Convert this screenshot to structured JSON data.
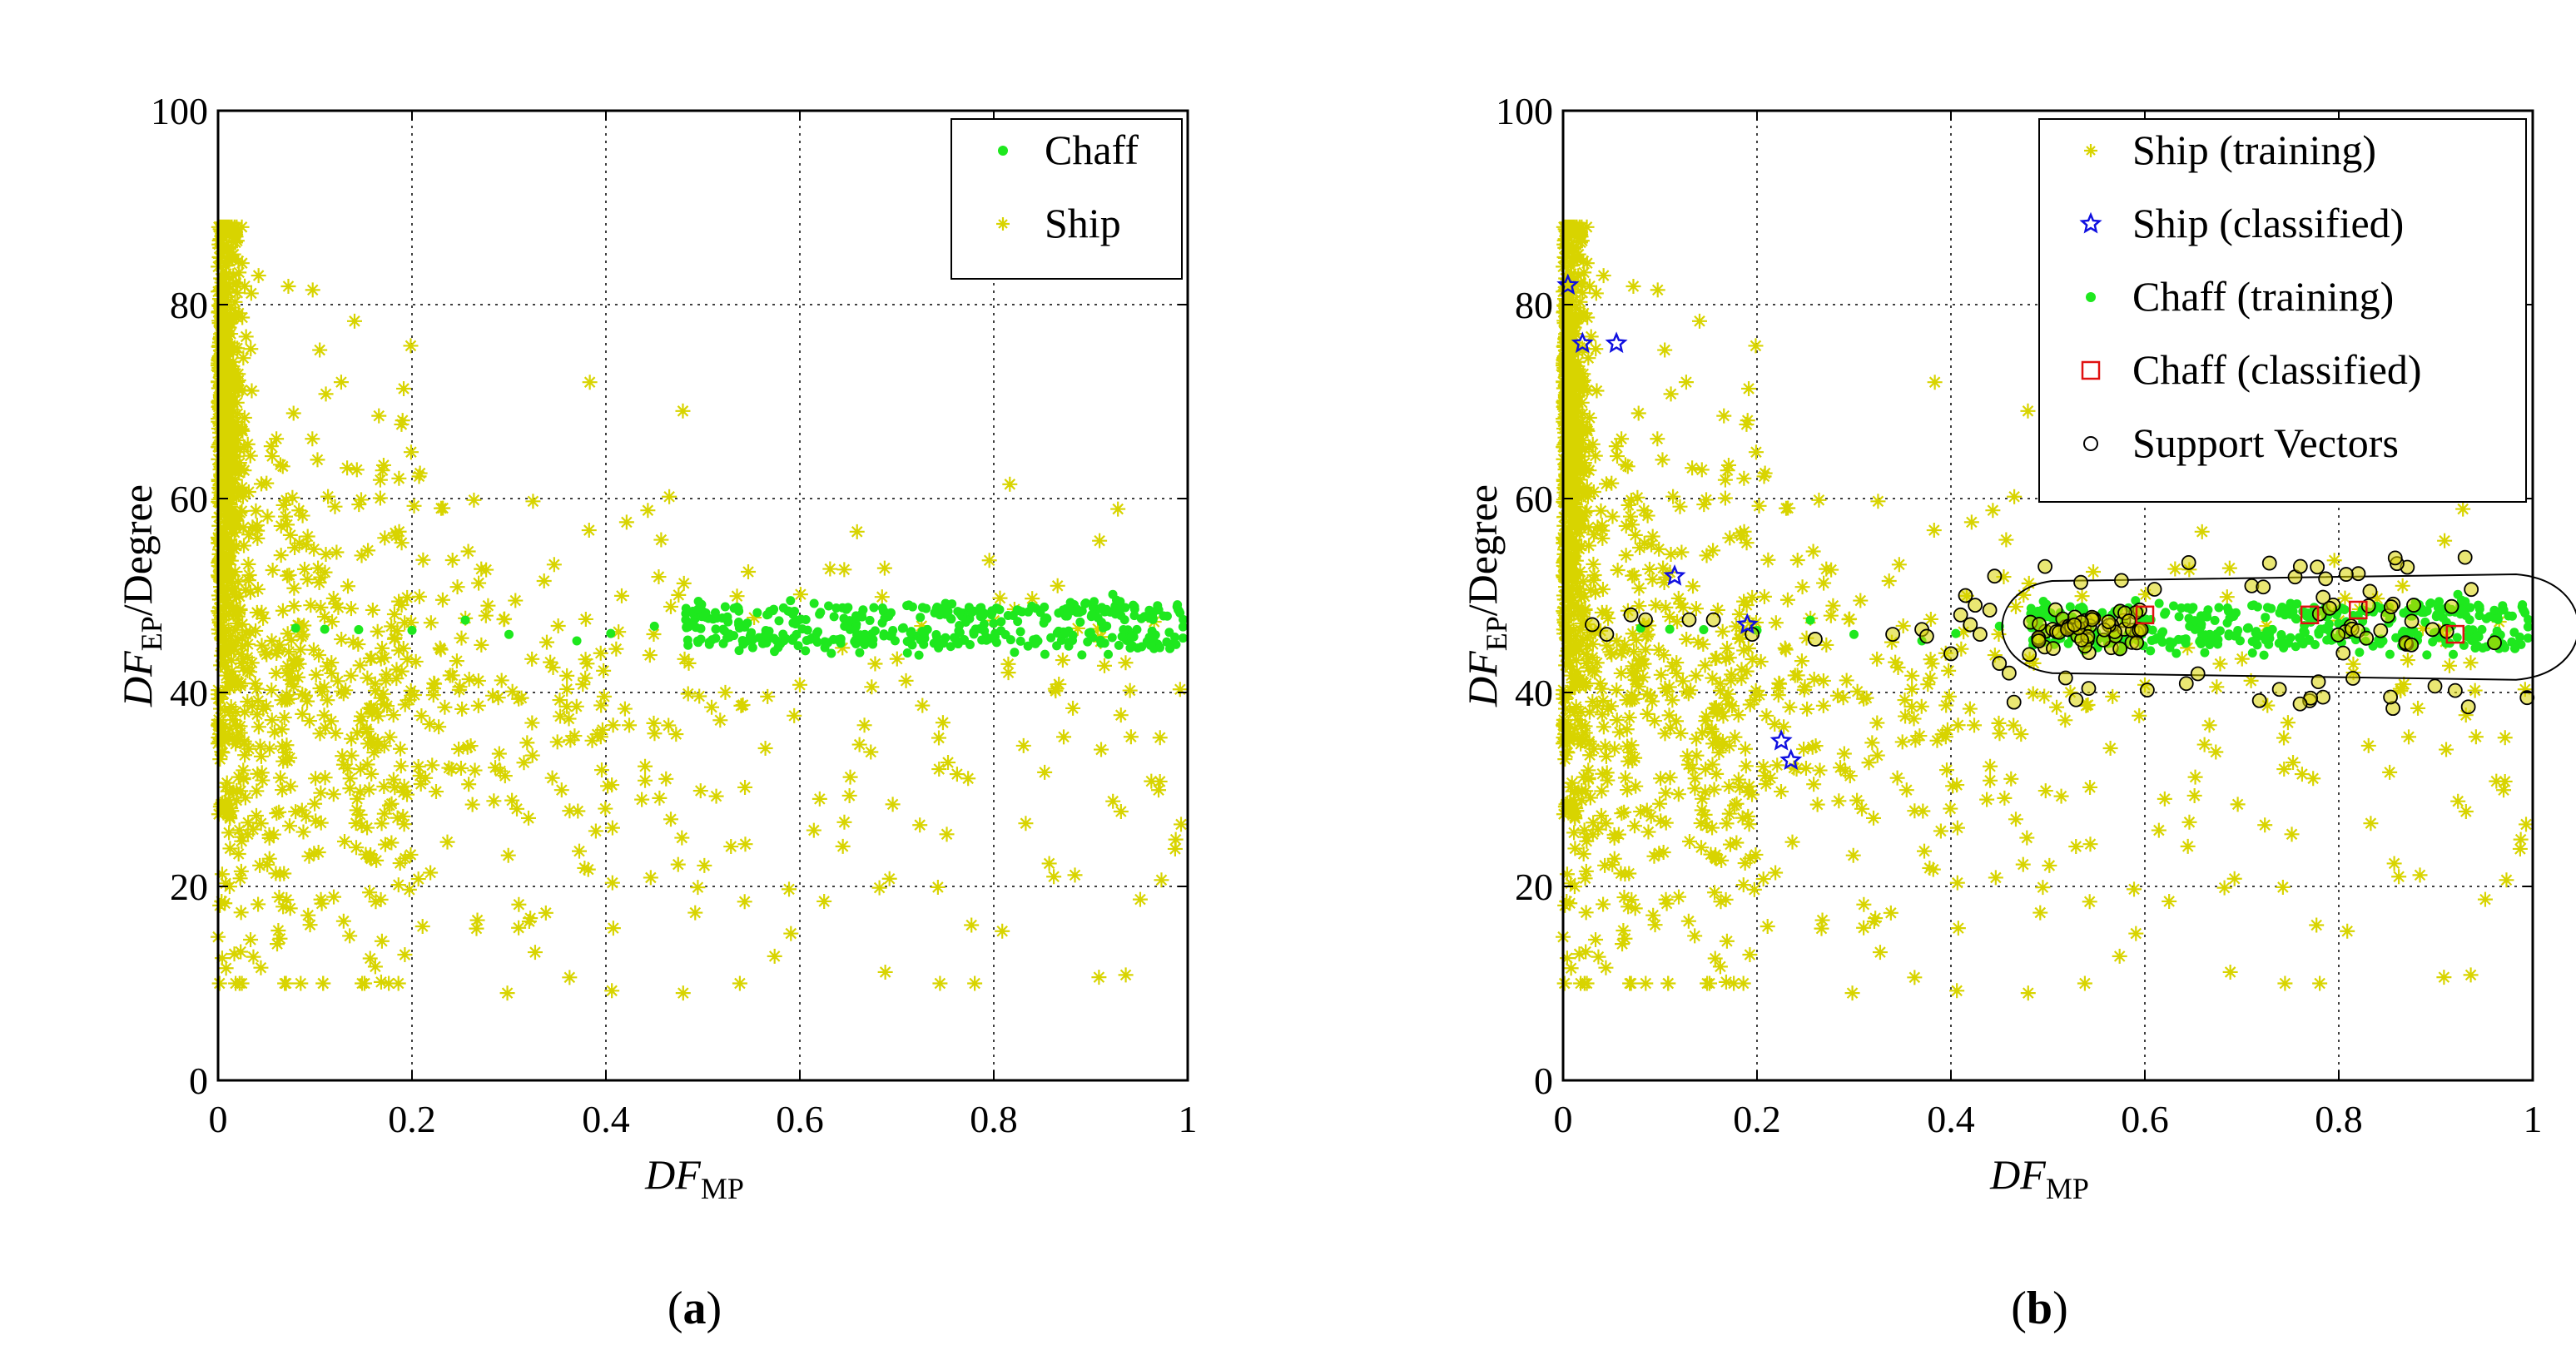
{
  "figure": {
    "panels": [
      {
        "id": "a",
        "caption_open": "(",
        "caption_letter": "a",
        "caption_close": ")",
        "legend": [
          {
            "label": "Chaff",
            "marker": "dot",
            "color": "#1ee81e"
          },
          {
            "label": "Ship",
            "marker": "plus-star",
            "color": "#d8d400"
          }
        ]
      },
      {
        "id": "b",
        "caption_open": "(",
        "caption_letter": "b",
        "caption_close": ")",
        "legend": [
          {
            "label": "Ship (training)",
            "marker": "plus-star",
            "color": "#d8d400"
          },
          {
            "label": "Ship (classified)",
            "marker": "star",
            "color": "#1010e0"
          },
          {
            "label": "Chaff (training)",
            "marker": "dot",
            "color": "#1ee81e"
          },
          {
            "label": "Chaff (classified)",
            "marker": "square",
            "color": "#e01010"
          },
          {
            "label": "Support Vectors",
            "marker": "circle",
            "color": "#000000"
          }
        ]
      }
    ],
    "ylabel_main": "DF",
    "ylabel_sub": "EP",
    "ylabel_tail": "/Degree",
    "xlabel_main": "DF",
    "xlabel_sub": "MP"
  },
  "colors": {
    "ship": "#d8d400",
    "chaff": "#1ee81e",
    "ship_classified": "#1010e0",
    "chaff_classified": "#e01010",
    "support": "#000000",
    "grid": "#000000"
  },
  "chart_data": [
    {
      "type": "scatter",
      "title": "",
      "xlabel": "DF_MP",
      "ylabel": "DF_EP/Degree",
      "xlim": [
        0,
        1
      ],
      "ylim": [
        0,
        100
      ],
      "xticks": [
        0,
        0.2,
        0.4,
        0.6,
        0.8,
        1
      ],
      "xtick_labels": [
        "0",
        "0.2",
        "0.4",
        "0.6",
        "0.8",
        "1"
      ],
      "yticks": [
        0,
        20,
        40,
        60,
        80,
        100
      ],
      "ytick_labels": [
        "0",
        "20",
        "40",
        "60",
        "80",
        "100"
      ],
      "grid": true,
      "legend_position": "top-right",
      "series": [
        {
          "name": "Chaff",
          "marker": "dot",
          "description": "band of points around y=45-49 for x from 0.45 to 1, plus sparse points near y=47 for x 0.05-0.45"
        },
        {
          "name": "Ship",
          "marker": "plus-star",
          "description": "dense cluster near x=0-0.05 with y 15-88, scattered points over x 0-1 and y 9-75"
        }
      ]
    },
    {
      "type": "scatter",
      "title": "",
      "xlabel": "DF_MP",
      "ylabel": "DF_EP/Degree",
      "xlim": [
        0,
        1
      ],
      "ylim": [
        0,
        100
      ],
      "xticks": [
        0,
        0.2,
        0.4,
        0.6,
        0.8,
        1
      ],
      "xtick_labels": [
        "0",
        "0.2",
        "0.4",
        "0.6",
        "0.8",
        "1"
      ],
      "yticks": [
        0,
        20,
        40,
        60,
        80,
        100
      ],
      "ytick_labels": [
        "0",
        "20",
        "40",
        "60",
        "80",
        "100"
      ],
      "grid": true,
      "legend_position": "top-right",
      "series": [
        {
          "name": "Ship (training)",
          "marker": "plus-star"
        },
        {
          "name": "Ship (classified)",
          "marker": "star",
          "x": [
            0.005,
            0.02,
            0.055,
            0.115,
            0.19,
            0.225,
            0.235
          ],
          "y": [
            82,
            76,
            76,
            52,
            47,
            35,
            33
          ]
        },
        {
          "name": "Chaff (training)",
          "marker": "dot"
        },
        {
          "name": "Chaff (classified)",
          "marker": "square",
          "x": [
            0.6,
            0.77,
            0.82,
            0.92
          ],
          "y": [
            48,
            48,
            48.5,
            46
          ]
        },
        {
          "name": "Support Vectors",
          "marker": "circle",
          "description": "circled points along the decision boundary, x from 0.0 to 1.0, y around 38-54"
        }
      ],
      "boundary": {
        "shape": "ellipse",
        "x_range": [
          0.47,
          1.0
        ],
        "y_range": [
          42,
          51.5
        ]
      }
    }
  ]
}
